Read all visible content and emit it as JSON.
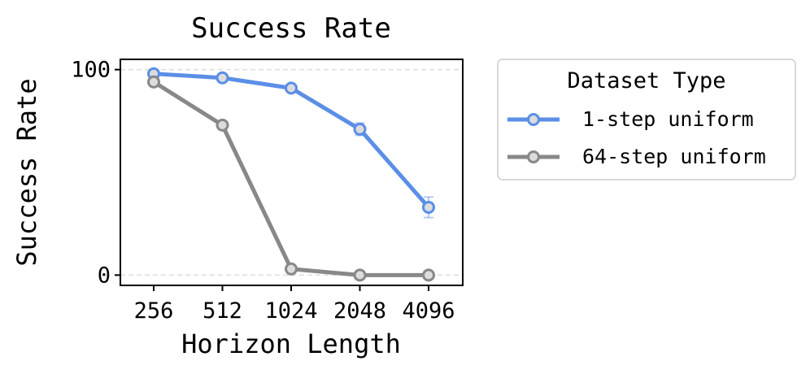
{
  "chart_data": {
    "type": "line",
    "title": "Success Rate",
    "xlabel": "Horizon Length",
    "ylabel": "Success Rate",
    "categories": [
      "256",
      "512",
      "1024",
      "2048",
      "4096"
    ],
    "ylim": [
      -5,
      105
    ],
    "yticks": [
      0,
      100
    ],
    "grid": "horizontal dashed at y ticks",
    "legend": {
      "title": "Dataset Type",
      "placement": "outside-right"
    },
    "series": [
      {
        "name": "1-step uniform",
        "color": "#5b8ee6",
        "values": [
          98,
          96,
          91,
          71,
          33
        ],
        "error": [
          0.5,
          0.5,
          1,
          3,
          5
        ]
      },
      {
        "name": "64-step uniform",
        "color": "#888888",
        "values": [
          94,
          73,
          3,
          0,
          0
        ],
        "error": [
          0,
          0,
          0,
          0,
          0
        ]
      }
    ]
  }
}
